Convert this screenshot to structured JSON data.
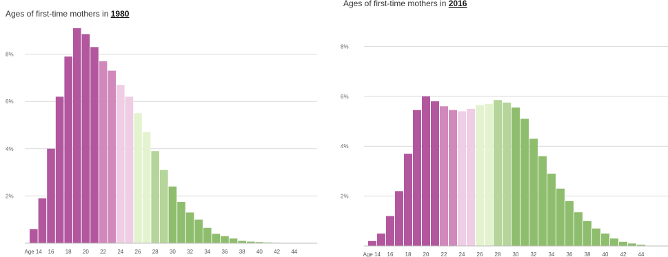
{
  "chart_data": [
    {
      "type": "bar",
      "title_prefix": "Ages of first-time mothers in ",
      "title_year": "1980",
      "categories": [
        "14",
        "15",
        "16",
        "17",
        "18",
        "19",
        "20",
        "21",
        "22",
        "23",
        "24",
        "25",
        "26",
        "27",
        "28",
        "29",
        "30",
        "31",
        "32",
        "33",
        "34",
        "35",
        "36",
        "37",
        "38",
        "39",
        "40",
        "41",
        "42",
        "43",
        "44"
      ],
      "values": [
        0.6,
        1.9,
        4.0,
        6.2,
        7.9,
        9.1,
        8.85,
        8.3,
        7.7,
        7.3,
        6.7,
        6.2,
        5.5,
        4.7,
        3.9,
        3.1,
        2.4,
        1.75,
        1.3,
        1.0,
        0.65,
        0.4,
        0.3,
        0.2,
        0.1,
        0.07,
        0.05,
        0.03,
        0.02,
        0.01,
        0.01
      ],
      "xtick_labels": [
        "Age 14",
        "16",
        "18",
        "20",
        "22",
        "24",
        "26",
        "28",
        "30",
        "32",
        "34",
        "36",
        "38",
        "40",
        "42",
        "44"
      ],
      "ytick_labels": [
        "2%",
        "4%",
        "6%",
        "8%"
      ],
      "ylim": [
        0,
        9.5
      ],
      "grid": true
    },
    {
      "type": "bar",
      "title_prefix": "Ages of first-time mothers in ",
      "title_year": "2016",
      "categories": [
        "14",
        "15",
        "16",
        "17",
        "18",
        "19",
        "20",
        "21",
        "22",
        "23",
        "24",
        "25",
        "26",
        "27",
        "28",
        "29",
        "30",
        "31",
        "32",
        "33",
        "34",
        "35",
        "36",
        "37",
        "38",
        "39",
        "40",
        "41",
        "42",
        "43",
        "44"
      ],
      "values": [
        0.2,
        0.5,
        1.2,
        2.2,
        3.7,
        5.45,
        6.0,
        5.8,
        5.6,
        5.45,
        5.4,
        5.5,
        5.65,
        5.7,
        5.85,
        5.75,
        5.55,
        5.1,
        4.3,
        3.6,
        2.9,
        2.3,
        1.8,
        1.35,
        1.0,
        0.7,
        0.5,
        0.3,
        0.17,
        0.1,
        0.05
      ],
      "xtick_labels": [
        "Age 14",
        "16",
        "18",
        "20",
        "22",
        "24",
        "26",
        "28",
        "30",
        "32",
        "34",
        "36",
        "38",
        "40",
        "42",
        "44"
      ],
      "ytick_labels": [
        "2%",
        "4%",
        "6%",
        "8%"
      ],
      "ylim": [
        0,
        8.5
      ],
      "grid": true
    }
  ],
  "colors": {
    "magenta_dark": "#b2579e",
    "magenta_mid": "#d189bb",
    "pink_light": "#efcde4",
    "green_light": "#e4f3cf",
    "green_mid": "#b5d59a",
    "green_dark": "#8fbd6e"
  }
}
